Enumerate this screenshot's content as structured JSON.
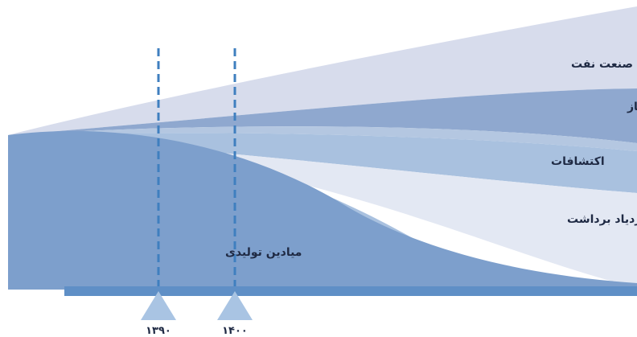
{
  "layers": {
    "oil_industry_support": "پشتیبانی صنعت نفت",
    "gas_added_value": "مقدار افزوده بواسطه گاز",
    "explorations": "اکتشافات",
    "enhanced_recovery": "ازدیاد برداشت",
    "producing_fields": "میادین تولیدی"
  },
  "timeline": {
    "year_1": "۱۳۹۰",
    "year_2": "۱۴۰۰"
  },
  "colors": {
    "layer_top": "#d7dcec",
    "layer_gas": "#8fa8cf",
    "layer_light_band": "#b4c7e1",
    "layer_explore": "#a9c1df",
    "layer_enhanced_light": "#e3e8f3",
    "producing_fields": "#7d9fcc",
    "baseline": "#5f8fc6",
    "marker": "#a9c4e3",
    "dashed_line": "#3f7fbf"
  }
}
